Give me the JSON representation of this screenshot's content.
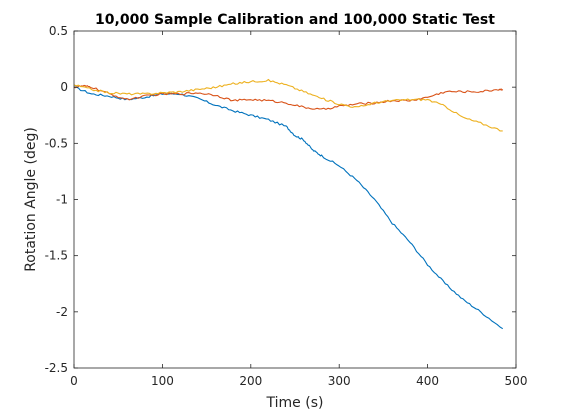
{
  "chart_data": {
    "type": "line",
    "title": "10,000 Sample Calibration and 100,000 Static Test",
    "xlabel": "Time (s)",
    "ylabel": "Rotation Angle (deg)",
    "xlim": [
      0,
      500
    ],
    "ylim": [
      -2.5,
      0.5
    ],
    "xticks": [
      0,
      100,
      200,
      300,
      400,
      500
    ],
    "yticks": [
      0.5,
      0,
      -0.5,
      -1,
      -1.5,
      -2,
      -2.5
    ],
    "xtick_labels": [
      "0",
      "100",
      "200",
      "300",
      "400",
      "500"
    ],
    "ytick_labels": [
      "0.5",
      "0",
      "-0.5",
      "-1",
      "-1.5",
      "-2",
      "-2.5"
    ],
    "grid": false,
    "box": true,
    "series": [
      {
        "color": "#0072BD",
        "x": [
          0,
          20,
          40,
          60,
          80,
          100,
          120,
          140,
          160,
          180,
          200,
          220,
          240,
          250,
          260,
          270,
          280,
          300,
          320,
          340,
          360,
          380,
          400,
          420,
          440,
          460,
          485
        ],
        "y": [
          0,
          -0.06,
          -0.08,
          -0.11,
          -0.09,
          -0.06,
          -0.06,
          -0.1,
          -0.16,
          -0.21,
          -0.25,
          -0.29,
          -0.35,
          -0.43,
          -0.47,
          -0.56,
          -0.61,
          -0.7,
          -0.83,
          -1.0,
          -1.21,
          -1.38,
          -1.58,
          -1.75,
          -1.89,
          -2.0,
          -2.15
        ]
      },
      {
        "color": "#D95319",
        "x": [
          0,
          10,
          20,
          40,
          60,
          80,
          100,
          120,
          140,
          160,
          180,
          200,
          220,
          240,
          260,
          280,
          300,
          320,
          340,
          360,
          380,
          400,
          420,
          440,
          460,
          480,
          485
        ],
        "y": [
          0,
          0.01,
          0.0,
          -0.06,
          -0.11,
          -0.08,
          -0.06,
          -0.06,
          -0.05,
          -0.07,
          -0.12,
          -0.11,
          -0.12,
          -0.14,
          -0.18,
          -0.2,
          -0.17,
          -0.15,
          -0.14,
          -0.12,
          -0.12,
          -0.09,
          -0.04,
          -0.04,
          -0.04,
          -0.02,
          -0.02
        ]
      },
      {
        "color": "#EDB120",
        "x": [
          0,
          20,
          40,
          60,
          80,
          100,
          120,
          140,
          160,
          180,
          200,
          220,
          240,
          260,
          280,
          300,
          320,
          340,
          360,
          380,
          400,
          420,
          440,
          460,
          485
        ],
        "y": [
          0.02,
          -0.02,
          -0.05,
          -0.06,
          -0.06,
          -0.05,
          -0.04,
          -0.02,
          0.0,
          0.03,
          0.05,
          0.06,
          0.02,
          -0.04,
          -0.1,
          -0.15,
          -0.18,
          -0.14,
          -0.12,
          -0.11,
          -0.11,
          -0.17,
          -0.27,
          -0.32,
          -0.39
        ]
      }
    ]
  }
}
